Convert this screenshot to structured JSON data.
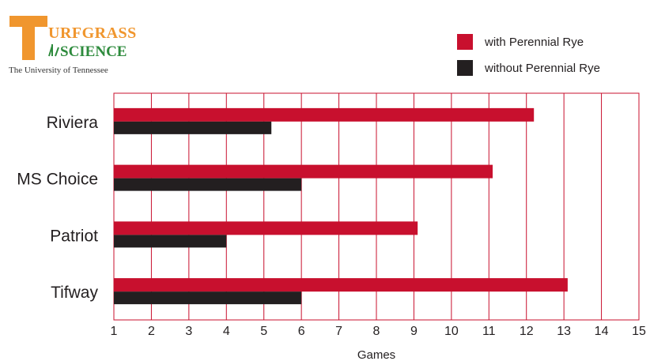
{
  "logo": {
    "letter": "T",
    "line1": "URFGRASS",
    "line2": "SCIENCE",
    "university": "The University of Tennessee",
    "colors": {
      "orange": "#f0962e",
      "green": "#2e8b3d",
      "text": "#333333"
    }
  },
  "colors": {
    "with": "#c8102e",
    "without": "#231f20",
    "grid": "#c8102e"
  },
  "chart_data": {
    "type": "bar",
    "orientation": "horizontal",
    "categories": [
      "Riviera",
      "MS Choice",
      "Patriot",
      "Tifway"
    ],
    "series": [
      {
        "name": "with Perennial Rye",
        "values": [
          12.2,
          11.1,
          9.1,
          13.1
        ]
      },
      {
        "name": "without Perennial Rye",
        "values": [
          5.2,
          6.0,
          4.0,
          6.0
        ]
      }
    ],
    "xlabel": "Games",
    "xlim": [
      1,
      15
    ],
    "xticks": [
      "1",
      "2",
      "3",
      "4",
      "5",
      "6",
      "7",
      "8",
      "9",
      "10",
      "11",
      "12",
      "13",
      "14",
      "15"
    ],
    "grid": true,
    "legend": "top-right"
  }
}
